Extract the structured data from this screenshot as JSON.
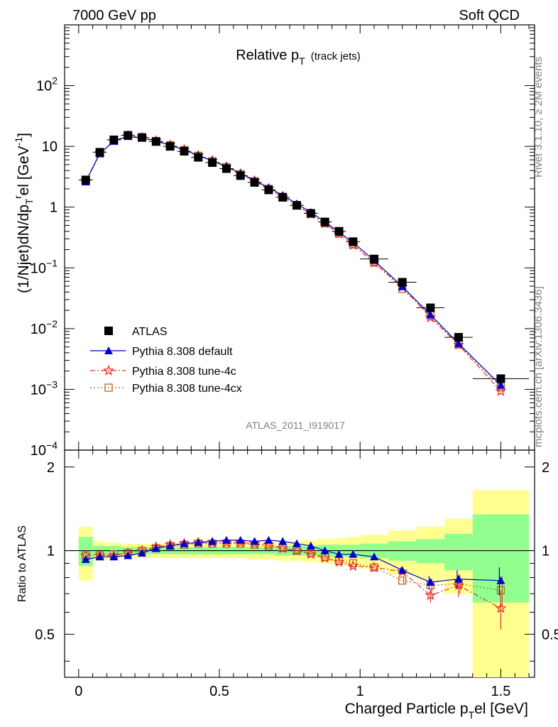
{
  "header": {
    "left": "7000 GeV pp",
    "right": "Soft QCD"
  },
  "side_text": {
    "top": "Rivet 3.1.10, ≥ 2M events",
    "bottom": "mcplots.cern.ch [arXiv:1306.3436]"
  },
  "chart_data": {
    "type": "line",
    "title": "Relative p",
    "title_sub": "T",
    "title_suffix": "(track jets)",
    "analysis_label": "ATLAS_2011_I919017",
    "xlabel": "Charged Particle p",
    "xlabel_sub": "T",
    "xlabel_suffix": "el [GeV]",
    "ylabel": "(1/Njet)dN/dp",
    "ylabel_sub": "T",
    "ylabel_sup": "r",
    "ylabel_suffix": "el [GeV",
    "ylabel_suffix_sup": "-1",
    "ylabel_end": "]",
    "ratio_ylabel": "Ratio to ATLAS",
    "xlim": [
      -0.05,
      1.62
    ],
    "ylim": [
      0.0001,
      1000
    ],
    "yscale": "log",
    "ratio_ylim": [
      0.35,
      2.3
    ],
    "x_ticks": [
      0,
      0.5,
      1,
      1.5
    ],
    "x_tick_labels": [
      "0",
      "0.5",
      "1",
      "1.5"
    ],
    "y_ticks": [
      {
        "v": 0.0001,
        "base": "10",
        "exp": "−4"
      },
      {
        "v": 0.001,
        "base": "10",
        "exp": "−3"
      },
      {
        "v": 0.01,
        "base": "10",
        "exp": "−2"
      },
      {
        "v": 0.1,
        "base": "10",
        "exp": "−1"
      },
      {
        "v": 1,
        "base": "1",
        "exp": ""
      },
      {
        "v": 10,
        "base": "10",
        "exp": ""
      },
      {
        "v": 100,
        "base": "10",
        "exp": "2"
      }
    ],
    "ratio_ticks": [
      0.5,
      1,
      2
    ],
    "ratio_tick_labels": [
      "0.5",
      "1",
      "2"
    ],
    "x": [
      0.025,
      0.075,
      0.125,
      0.175,
      0.225,
      0.275,
      0.325,
      0.375,
      0.425,
      0.475,
      0.525,
      0.575,
      0.625,
      0.675,
      0.725,
      0.775,
      0.825,
      0.875,
      0.925,
      0.975,
      1.05,
      1.15,
      1.25,
      1.35,
      1.5
    ],
    "bin_edges": [
      0,
      0.05,
      0.1,
      0.15,
      0.2,
      0.25,
      0.3,
      0.35,
      0.4,
      0.45,
      0.5,
      0.55,
      0.6,
      0.65,
      0.7,
      0.75,
      0.8,
      0.85,
      0.9,
      0.95,
      1.0,
      1.1,
      1.2,
      1.3,
      1.4,
      1.6
    ],
    "band_stat": [
      0.12,
      0.04,
      0.04,
      0.03,
      0.03,
      0.03,
      0.03,
      0.03,
      0.03,
      0.03,
      0.03,
      0.03,
      0.03,
      0.03,
      0.04,
      0.04,
      0.04,
      0.05,
      0.05,
      0.05,
      0.06,
      0.08,
      0.1,
      0.15,
      0.35
    ],
    "band_total": [
      0.22,
      0.08,
      0.07,
      0.06,
      0.06,
      0.06,
      0.06,
      0.06,
      0.06,
      0.06,
      0.06,
      0.06,
      0.07,
      0.07,
      0.08,
      0.08,
      0.09,
      0.1,
      0.11,
      0.12,
      0.14,
      0.18,
      0.22,
      0.3,
      0.65
    ],
    "series": [
      {
        "name": "ATLAS",
        "color": "#000000",
        "marker": "square",
        "values": [
          2.8,
          8.0,
          12.8,
          15.2,
          14.0,
          12.0,
          10.0,
          8.3,
          6.6,
          5.4,
          4.3,
          3.3,
          2.55,
          1.92,
          1.45,
          1.07,
          0.79,
          0.57,
          0.4,
          0.27,
          0.14,
          0.058,
          0.022,
          0.0072,
          0.0015
        ],
        "ratio": [
          1,
          1,
          1,
          1,
          1,
          1,
          1,
          1,
          1,
          1,
          1,
          1,
          1,
          1,
          1,
          1,
          1,
          1,
          1,
          1,
          1,
          1,
          1,
          1,
          1
        ]
      },
      {
        "name": "Pythia 8.308 default",
        "color": "#0000cc",
        "marker": "triangle",
        "line": "solid",
        "ratio": [
          0.93,
          0.95,
          0.95,
          0.96,
          0.98,
          1.02,
          1.04,
          1.06,
          1.07,
          1.08,
          1.09,
          1.09,
          1.08,
          1.09,
          1.08,
          1.06,
          1.04,
          1.0,
          0.97,
          0.97,
          0.95,
          0.85,
          0.77,
          0.79,
          0.78
        ]
      },
      {
        "name": "Pythia 8.308 tune-4c",
        "color": "#e8302a",
        "marker": "star",
        "line": "dashdot",
        "ratio": [
          0.96,
          0.96,
          0.96,
          0.98,
          1.0,
          1.03,
          1.05,
          1.06,
          1.07,
          1.07,
          1.07,
          1.07,
          1.06,
          1.05,
          1.02,
          1.0,
          0.97,
          0.94,
          0.91,
          0.88,
          0.87,
          0.84,
          0.69,
          0.75,
          0.62
        ]
      },
      {
        "name": "Pythia 8.308 tune-4cx",
        "color": "#c06020",
        "marker": "open-square",
        "line": "dotted",
        "ratio": [
          0.96,
          0.96,
          0.97,
          0.98,
          1.0,
          1.02,
          1.04,
          1.05,
          1.06,
          1.06,
          1.06,
          1.06,
          1.05,
          1.04,
          1.02,
          1.0,
          0.98,
          0.95,
          0.92,
          0.9,
          0.87,
          0.78,
          0.75,
          0.76,
          0.72
        ]
      }
    ],
    "ratio_errors": {
      "Pythia 8.308 default": [
        0,
        0,
        0,
        0,
        0,
        0,
        0,
        0,
        0,
        0,
        0,
        0,
        0,
        0,
        0,
        0,
        0,
        0,
        0,
        0,
        0,
        0.02,
        0.04,
        0.06,
        0.09
      ],
      "Pythia 8.308 tune-4c": [
        0,
        0,
        0,
        0,
        0,
        0,
        0,
        0,
        0,
        0,
        0,
        0,
        0,
        0,
        0,
        0,
        0,
        0,
        0,
        0,
        0,
        0.02,
        0.04,
        0.07,
        0.1
      ],
      "Pythia 8.308 tune-4cx": [
        0,
        0,
        0,
        0,
        0,
        0,
        0,
        0,
        0,
        0,
        0,
        0,
        0,
        0,
        0,
        0,
        0,
        0,
        0,
        0,
        0,
        0.02,
        0.04,
        0.06,
        0.09
      ]
    },
    "legend": {
      "placement": "bottom-left"
    },
    "colors": {
      "band_inner": "#90ff90",
      "band_outer": "#ffff90"
    }
  }
}
